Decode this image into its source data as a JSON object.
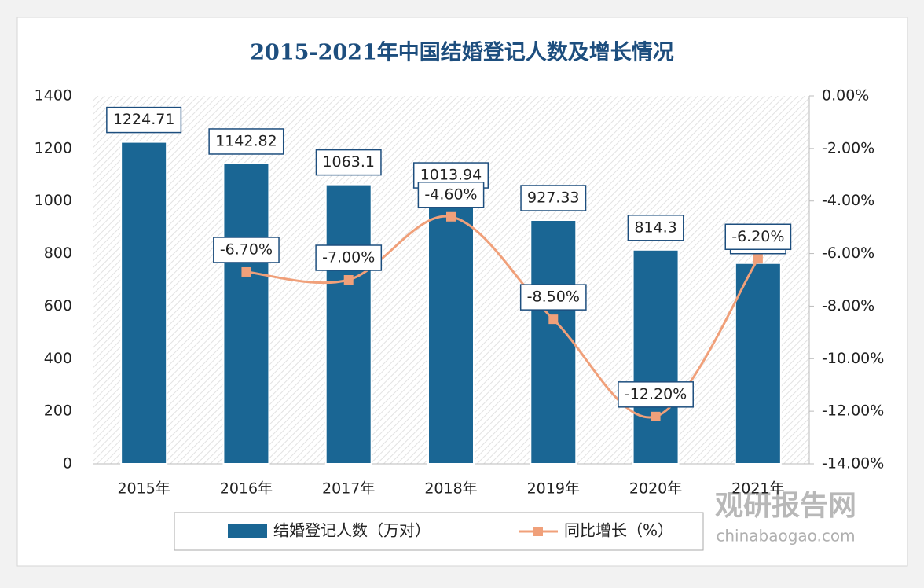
{
  "chart_data": {
    "type": "bar-line",
    "title": "2015-2021年中国结婚登记人数及增长情况",
    "categories": [
      "2015年",
      "2016年",
      "2017年",
      "2018年",
      "2019年",
      "2020年",
      "2021年"
    ],
    "series": [
      {
        "name": "结婚登记人数（万对）",
        "type": "bar",
        "color": "#1a6694",
        "values": [
          1224.71,
          1142.82,
          1063.1,
          1013.94,
          927.33,
          814.3,
          763.6
        ]
      },
      {
        "name": "同比增长（%）",
        "type": "line",
        "axis": "y2",
        "color": "#f0a07a",
        "values": [
          null,
          -6.7,
          -7.0,
          -4.6,
          -8.5,
          -12.2,
          -6.2
        ],
        "value_labels": [
          null,
          "-6.70%",
          "-7.00%",
          "-4.60%",
          "-8.50%",
          "-12.20%",
          "-6.20%"
        ]
      }
    ],
    "ylim": [
      0,
      1400
    ],
    "yticks": [
      0,
      200,
      400,
      600,
      800,
      1000,
      1200,
      1400
    ],
    "y2lim": [
      -14,
      0
    ],
    "y2ticks": [
      {
        "value": -14,
        "label": "-14.00%"
      },
      {
        "value": -12,
        "label": "-12.00%"
      },
      {
        "value": -10,
        "label": "-10.00%"
      },
      {
        "value": -8,
        "label": "-8.00%"
      },
      {
        "value": -6,
        "label": "-6.00%"
      },
      {
        "value": -4,
        "label": "-4.00%"
      },
      {
        "value": -2,
        "label": "-2.00%"
      },
      {
        "value": 0,
        "label": "0.00%"
      }
    ],
    "legend": "bottom",
    "watermark": {
      "name": "观研报告网",
      "site": "chinabaogao.com"
    }
  }
}
